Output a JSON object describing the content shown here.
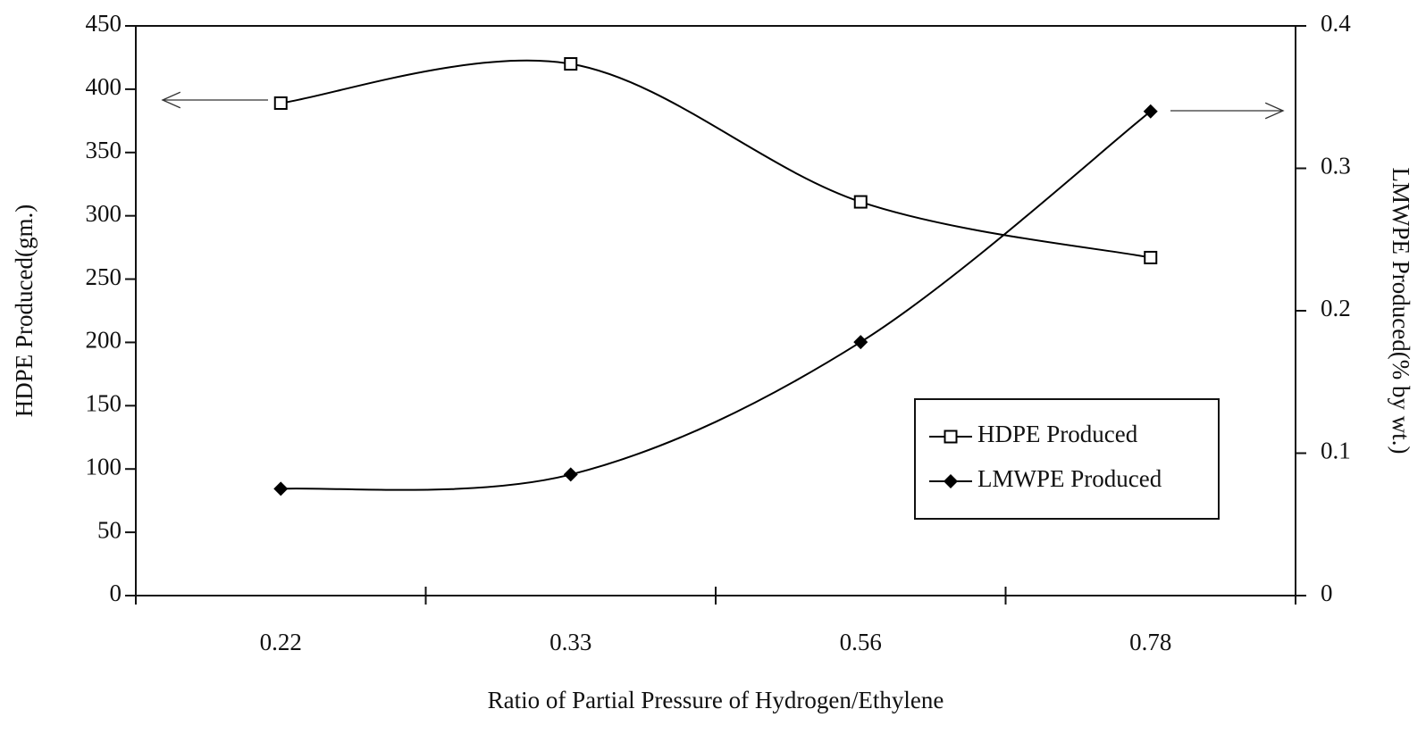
{
  "chart_data": {
    "type": "line",
    "xlabel": "Ratio of Partial Pressure of Hydrogen/Ethylene",
    "ylabel": "HDPE Produced(gm.)",
    "y2label": "LMWPE Produced(% by wt.)",
    "categories": [
      "0.22",
      "0.33",
      "0.56",
      "0.78"
    ],
    "series": [
      {
        "name": "HDPE Produced",
        "color": "#000000",
        "marker": "square",
        "values": [
          389,
          420,
          311,
          267
        ]
      },
      {
        "name": "LMWPE Produced",
        "color": "#000000",
        "marker": "diamond",
        "axis": "y2",
        "values": [
          0.075,
          0.085,
          0.178,
          0.34
        ]
      }
    ],
    "ylim": [
      0,
      450
    ],
    "yticks": [
      0,
      50,
      100,
      150,
      200,
      250,
      300,
      350,
      400,
      450
    ],
    "y2lim": [
      0,
      0.4
    ],
    "y2ticks": [
      0,
      0.1,
      0.2,
      0.3,
      0.4
    ],
    "grid": false,
    "legend": "lower right"
  }
}
